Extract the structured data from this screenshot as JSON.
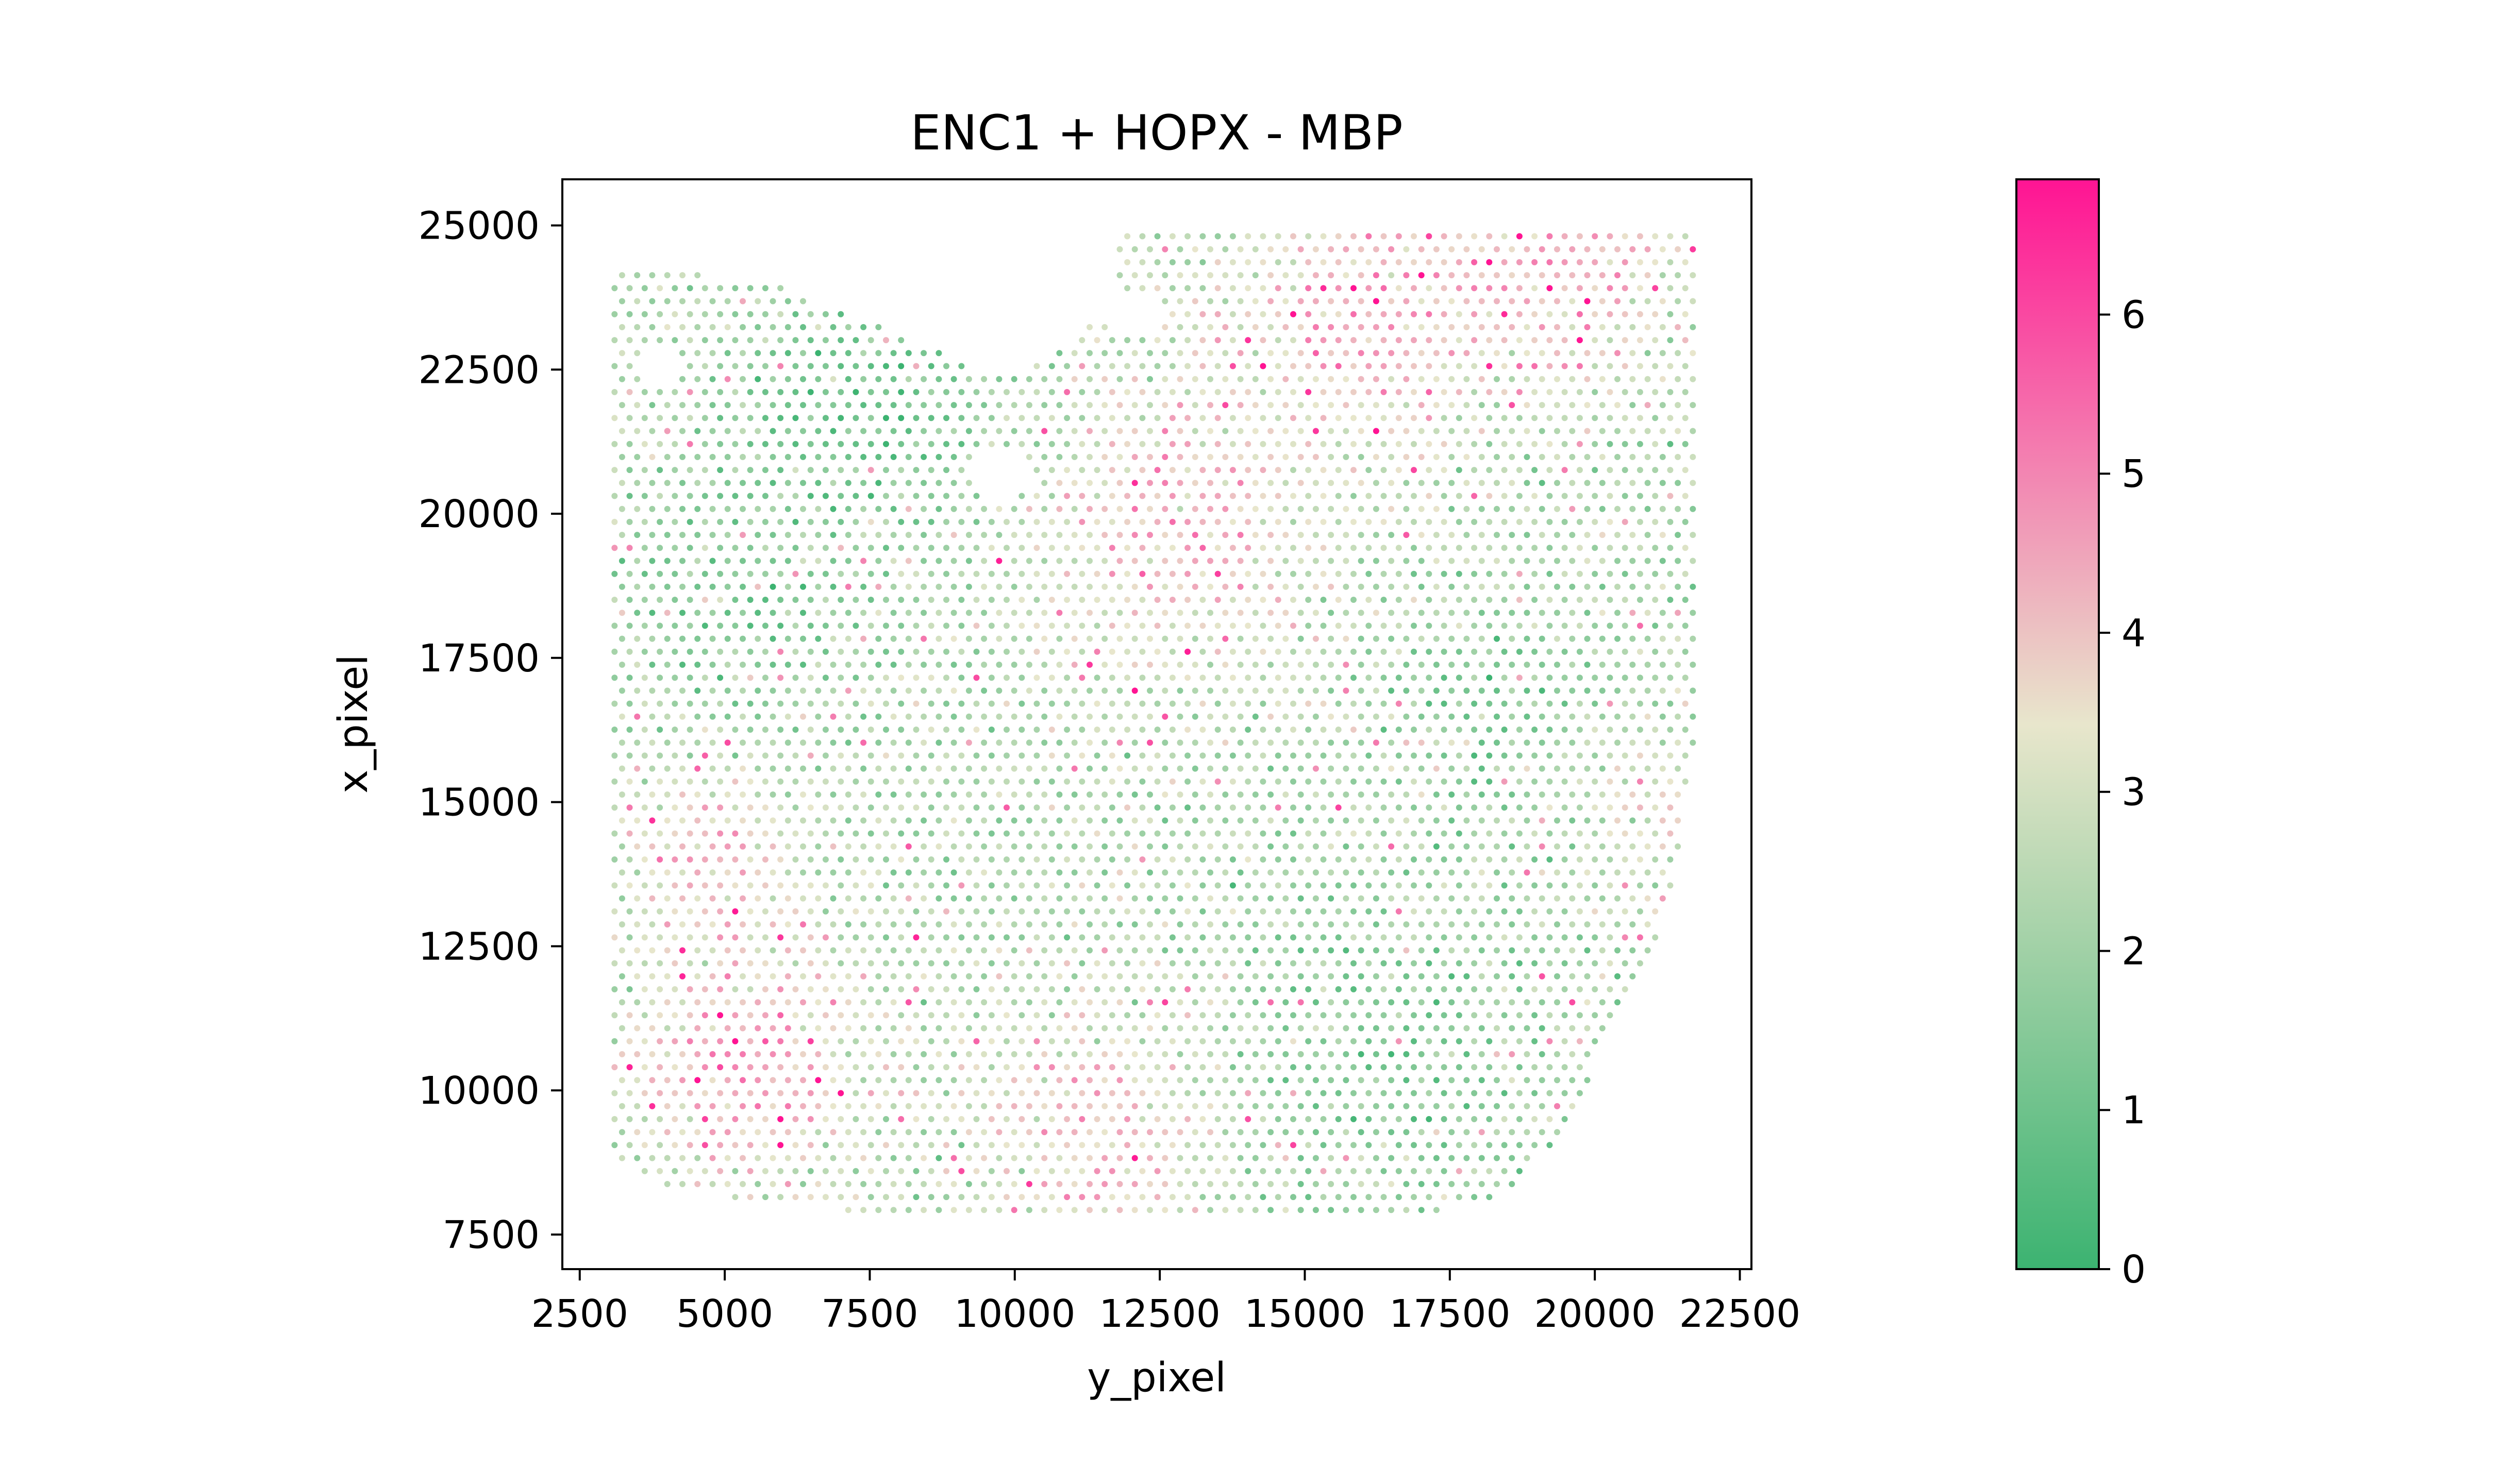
{
  "chart_data": {
    "type": "scatter",
    "title": "ENC1 + HOPX - MBP",
    "xlabel": "y_pixel",
    "ylabel": "x_pixel",
    "xlim": [
      2200,
      22700
    ],
    "ylim": [
      25800,
      6900
    ],
    "y_axis_inverted": true,
    "grid": false,
    "x_ticks": [
      2500,
      5000,
      7500,
      10000,
      12500,
      15000,
      17500,
      20000,
      22500
    ],
    "x_tick_labels": [
      "2500",
      "5000",
      "7500",
      "10000",
      "12500",
      "15000",
      "17500",
      "20000",
      "22500"
    ],
    "y_ticks": [
      7500,
      10000,
      12500,
      15000,
      17500,
      20000,
      22500,
      25000
    ],
    "y_tick_labels": [
      "7500",
      "10000",
      "12500",
      "15000",
      "17500",
      "20000",
      "22500",
      "25000"
    ],
    "colorbar": {
      "min": 0,
      "max": 6.85,
      "ticks": [
        0,
        1,
        2,
        3,
        4,
        5,
        6
      ],
      "tick_labels": [
        "0",
        "1",
        "2",
        "3",
        "4",
        "5",
        "6"
      ],
      "colors": [
        "#3cb371",
        "#e8e6cc",
        "#ff1493"
      ],
      "placement": "right"
    },
    "spot_pitch": 260,
    "spot_field": {
      "description_of_values": "color value of each spot on the colorbar scale",
      "outline_top": [
        [
          3100,
          8700
        ],
        [
          4200,
          8300
        ],
        [
          6000,
          8000
        ],
        [
          9000,
          7800
        ],
        [
          14000,
          7750
        ],
        [
          18000,
          7950
        ],
        [
          18600,
          8300
        ],
        [
          19300,
          9100
        ],
        [
          19900,
          10200
        ],
        [
          20600,
          11700
        ],
        [
          21200,
          13000
        ],
        [
          21500,
          14500
        ],
        [
          21700,
          16000
        ],
        [
          21700,
          25000
        ]
      ],
      "outline_bottom": [
        [
          3100,
          24200
        ],
        [
          5600,
          24100
        ],
        [
          7500,
          23300
        ],
        [
          8800,
          22800
        ],
        [
          9600,
          22300
        ],
        [
          10500,
          22700
        ],
        [
          11200,
          23200
        ],
        [
          11800,
          24000
        ],
        [
          11800,
          25000
        ],
        [
          21700,
          25000
        ]
      ],
      "holes": [
        {
          "center": [
            9800,
            20700
          ],
          "radius": [
            500,
            450
          ]
        },
        {
          "center": [
            3900,
            22600
          ],
          "radius": [
            420,
            300
          ]
        },
        {
          "center": [
            12000,
            23500
          ],
          "radius": [
            700,
            300
          ]
        }
      ],
      "hotspots": [
        {
          "center": [
            5300,
            10500
          ],
          "radius": 1900,
          "peak": 4.8
        },
        {
          "center": [
            4800,
            14200
          ],
          "radius": 1300,
          "peak": 4.3
        },
        {
          "center": [
            11500,
            9400
          ],
          "radius": 2000,
          "peak": 4.0
        },
        {
          "center": [
            12800,
            19800
          ],
          "radius": 2200,
          "peak": 4.4
        },
        {
          "center": [
            16000,
            23600
          ],
          "radius": 2200,
          "peak": 4.6
        },
        {
          "center": [
            19800,
            24300
          ],
          "radius": 1800,
          "peak": 4.2
        },
        {
          "center": [
            20800,
            15000
          ],
          "radius": 1200,
          "peak": 3.4
        }
      ],
      "coldspots": [
        {
          "center": [
            7500,
            22000
          ],
          "radius": 2200,
          "low": 0.9
        },
        {
          "center": [
            5000,
            18500
          ],
          "radius": 1800,
          "low": 1.3
        },
        {
          "center": [
            16500,
            10500
          ],
          "radius": 2500,
          "low": 1.3
        },
        {
          "center": [
            18500,
            16500
          ],
          "radius": 1800,
          "low": 1.3
        }
      ],
      "baseline": 2.3
    }
  }
}
